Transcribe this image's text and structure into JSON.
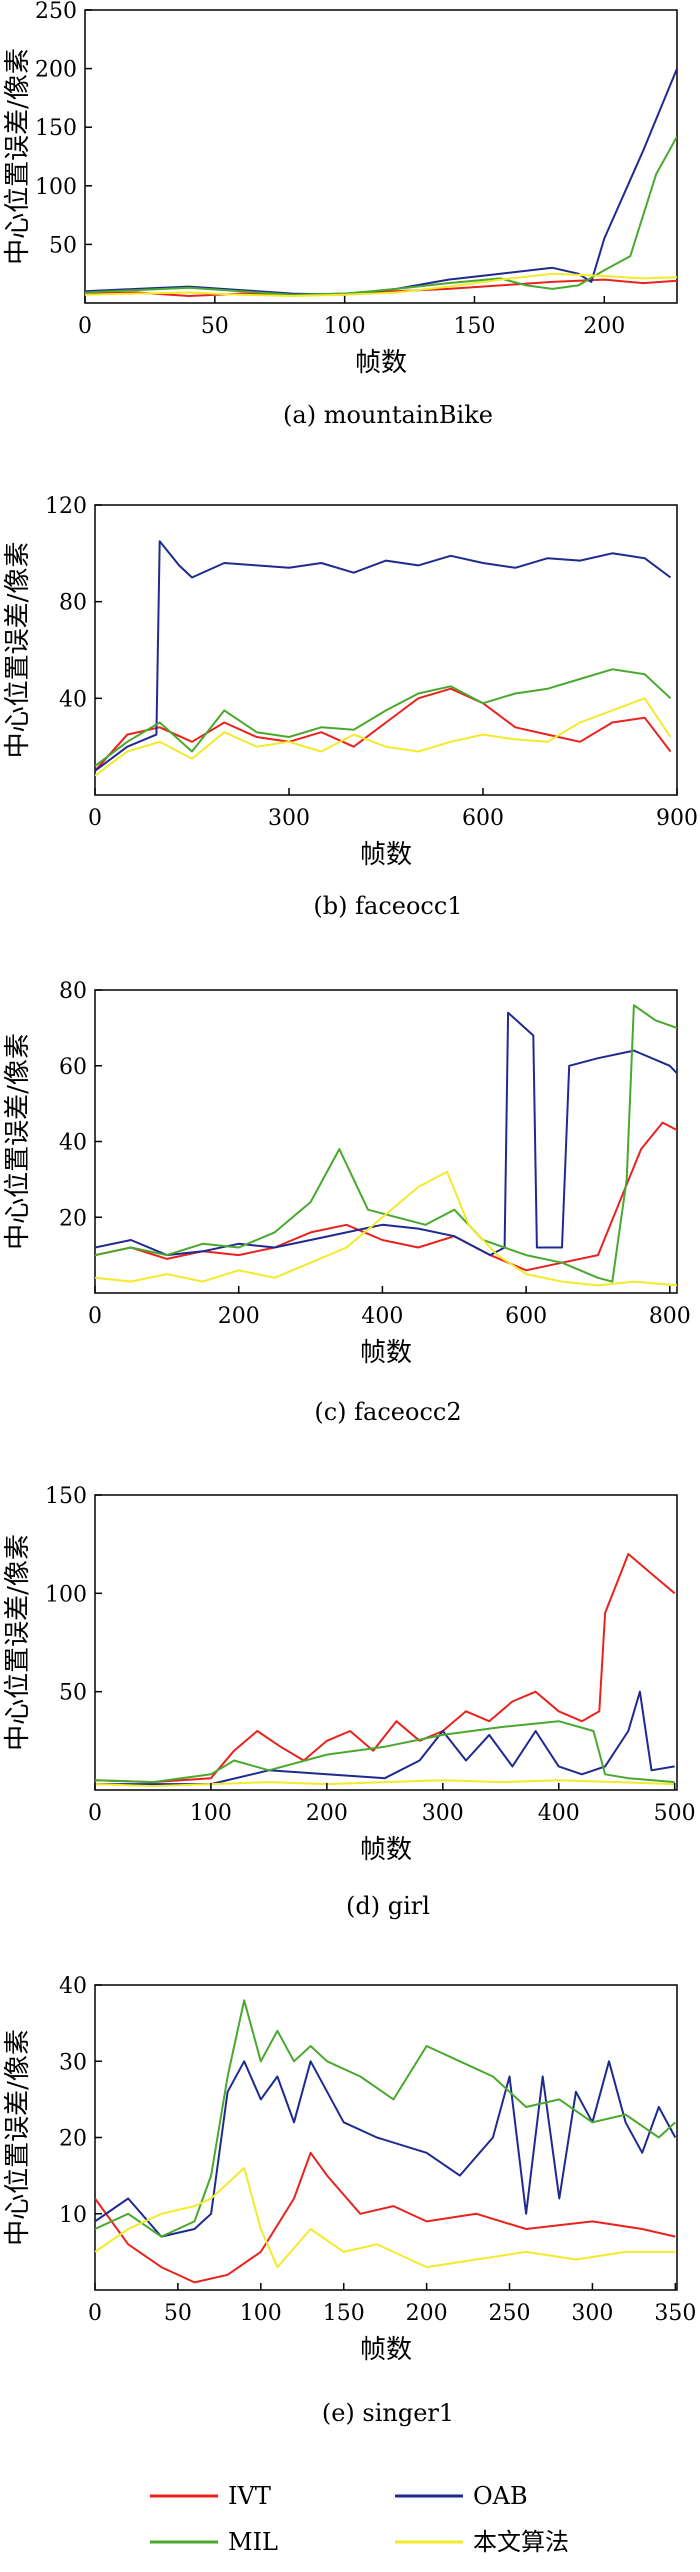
{
  "colors": {
    "IVT": "#e8231e",
    "OAB": "#1f2a8e",
    "MIL": "#49a82d",
    "ours": "#f2ea2a"
  },
  "legend": [
    {
      "key": "IVT",
      "label": "IVT"
    },
    {
      "key": "OAB",
      "label": "OAB"
    },
    {
      "key": "MIL",
      "label": "MIL"
    },
    {
      "key": "ours",
      "label": "本文算法"
    }
  ],
  "chart_data": [
    {
      "type": "line",
      "caption": "(a) mountainBike",
      "xlabel": "帧数",
      "ylabel": "中心位置误差/像素",
      "xlim": [
        0,
        228
      ],
      "ylim": [
        0,
        250
      ],
      "xticks": [
        0,
        50,
        100,
        150,
        200
      ],
      "yticks": [
        50,
        100,
        150,
        200,
        250
      ],
      "series": [
        {
          "name": "IVT",
          "x": [
            0,
            20,
            40,
            60,
            80,
            100,
            120,
            140,
            160,
            180,
            200,
            215,
            228
          ],
          "values": [
            8,
            9,
            6,
            8,
            7,
            8,
            10,
            12,
            15,
            18,
            20,
            17,
            19
          ]
        },
        {
          "name": "OAB",
          "x": [
            0,
            20,
            40,
            60,
            80,
            100,
            120,
            140,
            160,
            180,
            190,
            195,
            200,
            215,
            228
          ],
          "values": [
            10,
            12,
            14,
            11,
            8,
            7,
            12,
            20,
            25,
            30,
            25,
            18,
            55,
            130,
            200
          ]
        },
        {
          "name": "MIL",
          "x": [
            0,
            20,
            40,
            60,
            80,
            100,
            120,
            140,
            160,
            170,
            180,
            190,
            200,
            210,
            220,
            228
          ],
          "values": [
            9,
            11,
            13,
            10,
            7,
            8,
            12,
            17,
            21,
            15,
            12,
            15,
            28,
            40,
            110,
            142
          ]
        },
        {
          "name": "本文算法",
          "x": [
            0,
            20,
            40,
            60,
            80,
            100,
            120,
            140,
            160,
            180,
            200,
            215,
            228
          ],
          "values": [
            7,
            8,
            9,
            7,
            6,
            7,
            9,
            14,
            20,
            25,
            23,
            21,
            22
          ]
        }
      ]
    },
    {
      "type": "line",
      "caption": "(b) faceocc1",
      "xlabel": "帧数",
      "ylabel": "中心位置误差/像素",
      "xlim": [
        0,
        900
      ],
      "ylim": [
        0,
        120
      ],
      "xticks": [
        0,
        300,
        600,
        900
      ],
      "yticks": [
        40,
        80,
        120
      ],
      "series": [
        {
          "name": "IVT",
          "x": [
            0,
            50,
            100,
            150,
            200,
            250,
            300,
            350,
            400,
            450,
            500,
            550,
            600,
            650,
            700,
            750,
            800,
            850,
            890
          ],
          "values": [
            10,
            25,
            28,
            22,
            30,
            24,
            22,
            26,
            20,
            30,
            40,
            44,
            38,
            28,
            25,
            22,
            30,
            32,
            18
          ]
        },
        {
          "name": "OAB",
          "x": [
            0,
            50,
            95,
            100,
            130,
            150,
            200,
            250,
            300,
            350,
            400,
            450,
            500,
            550,
            600,
            650,
            700,
            750,
            800,
            850,
            890
          ],
          "values": [
            10,
            20,
            25,
            105,
            95,
            90,
            96,
            95,
            94,
            96,
            92,
            97,
            95,
            99,
            96,
            94,
            98,
            97,
            100,
            98,
            90
          ]
        },
        {
          "name": "MIL",
          "x": [
            0,
            50,
            100,
            150,
            200,
            250,
            300,
            350,
            400,
            450,
            500,
            550,
            600,
            650,
            700,
            750,
            800,
            850,
            890
          ],
          "values": [
            12,
            22,
            30,
            18,
            35,
            26,
            24,
            28,
            27,
            35,
            42,
            45,
            38,
            42,
            44,
            48,
            52,
            50,
            40
          ]
        },
        {
          "name": "本文算法",
          "x": [
            0,
            50,
            100,
            150,
            200,
            250,
            300,
            350,
            400,
            450,
            500,
            550,
            600,
            650,
            700,
            750,
            800,
            850,
            890
          ],
          "values": [
            8,
            18,
            22,
            15,
            26,
            20,
            22,
            18,
            25,
            20,
            18,
            22,
            25,
            23,
            22,
            30,
            35,
            40,
            24
          ]
        }
      ]
    },
    {
      "type": "line",
      "caption": "(c) faceocc2",
      "xlabel": "帧数",
      "ylabel": "中心位置误差/像素",
      "xlim": [
        0,
        810
      ],
      "ylim": [
        0,
        80
      ],
      "xticks": [
        0,
        200,
        400,
        600,
        800
      ],
      "yticks": [
        20,
        40,
        60,
        80
      ],
      "series": [
        {
          "name": "IVT",
          "x": [
            0,
            50,
            100,
            150,
            200,
            250,
            300,
            350,
            400,
            450,
            500,
            550,
            600,
            650,
            700,
            730,
            760,
            790,
            810
          ],
          "values": [
            10,
            12,
            9,
            11,
            10,
            12,
            16,
            18,
            14,
            12,
            15,
            10,
            6,
            8,
            10,
            24,
            38,
            45,
            43
          ]
        },
        {
          "name": "OAB",
          "x": [
            0,
            50,
            100,
            150,
            200,
            250,
            300,
            350,
            400,
            450,
            500,
            550,
            570,
            575,
            610,
            615,
            650,
            660,
            700,
            750,
            800,
            810
          ],
          "values": [
            12,
            14,
            10,
            11,
            13,
            12,
            14,
            16,
            18,
            17,
            15,
            10,
            12,
            74,
            68,
            12,
            12,
            60,
            62,
            64,
            60,
            58
          ]
        },
        {
          "name": "MIL",
          "x": [
            0,
            50,
            100,
            150,
            200,
            250,
            300,
            340,
            380,
            420,
            460,
            500,
            540,
            600,
            650,
            700,
            720,
            740,
            750,
            780,
            810
          ],
          "values": [
            10,
            12,
            10,
            13,
            12,
            16,
            24,
            38,
            22,
            20,
            18,
            22,
            14,
            10,
            8,
            4,
            3,
            30,
            76,
            72,
            70
          ]
        },
        {
          "name": "本文算法",
          "x": [
            0,
            50,
            100,
            150,
            200,
            250,
            300,
            350,
            400,
            450,
            490,
            520,
            560,
            600,
            650,
            700,
            750,
            810
          ],
          "values": [
            4,
            3,
            5,
            3,
            6,
            4,
            8,
            12,
            20,
            28,
            32,
            18,
            10,
            5,
            3,
            2,
            3,
            2
          ]
        }
      ]
    },
    {
      "type": "line",
      "caption": "(d) girl",
      "xlabel": "帧数",
      "ylabel": "中心位置误差/像素",
      "xlim": [
        0,
        502
      ],
      "ylim": [
        0,
        150
      ],
      "xticks": [
        0,
        100,
        200,
        300,
        400,
        500
      ],
      "yticks": [
        50,
        100,
        150
      ],
      "series": [
        {
          "name": "IVT",
          "x": [
            0,
            50,
            100,
            120,
            140,
            160,
            180,
            200,
            220,
            240,
            260,
            280,
            300,
            320,
            340,
            360,
            380,
            400,
            420,
            435,
            440,
            460,
            480,
            500
          ],
          "values": [
            5,
            4,
            6,
            20,
            30,
            22,
            15,
            25,
            30,
            20,
            35,
            25,
            30,
            40,
            35,
            45,
            50,
            40,
            35,
            40,
            90,
            120,
            110,
            100
          ]
        },
        {
          "name": "OAB",
          "x": [
            0,
            50,
            100,
            150,
            200,
            250,
            280,
            300,
            320,
            340,
            360,
            380,
            400,
            420,
            440,
            460,
            470,
            480,
            500
          ],
          "values": [
            3,
            3,
            3,
            10,
            8,
            6,
            15,
            30,
            15,
            28,
            12,
            30,
            12,
            8,
            12,
            30,
            50,
            10,
            12
          ]
        },
        {
          "name": "MIL",
          "x": [
            0,
            50,
            100,
            120,
            150,
            200,
            250,
            300,
            350,
            400,
            430,
            440,
            460,
            500
          ],
          "values": [
            5,
            4,
            8,
            15,
            10,
            18,
            22,
            28,
            32,
            35,
            30,
            8,
            6,
            4
          ]
        },
        {
          "name": "本文算法",
          "x": [
            0,
            50,
            100,
            150,
            200,
            250,
            300,
            350,
            400,
            450,
            500
          ],
          "values": [
            3,
            2,
            3,
            4,
            3,
            4,
            5,
            4,
            5,
            4,
            3
          ]
        }
      ]
    },
    {
      "type": "line",
      "caption": "(e) singer1",
      "xlabel": "帧数",
      "ylabel": "中心位置误差/像素",
      "xlim": [
        0,
        351
      ],
      "ylim": [
        0,
        40
      ],
      "xticks": [
        0,
        50,
        100,
        150,
        200,
        250,
        300,
        350
      ],
      "yticks": [
        10,
        20,
        30,
        40
      ],
      "series": [
        {
          "name": "IVT",
          "x": [
            0,
            20,
            40,
            60,
            80,
            100,
            120,
            130,
            140,
            160,
            180,
            200,
            230,
            260,
            300,
            330,
            350
          ],
          "values": [
            12,
            6,
            3,
            1,
            2,
            5,
            12,
            18,
            15,
            10,
            11,
            9,
            10,
            8,
            9,
            8,
            7
          ]
        },
        {
          "name": "OAB",
          "x": [
            0,
            20,
            40,
            60,
            70,
            80,
            90,
            100,
            110,
            120,
            130,
            150,
            170,
            200,
            220,
            240,
            250,
            260,
            270,
            280,
            290,
            300,
            310,
            320,
            330,
            340,
            350
          ],
          "values": [
            9,
            12,
            7,
            8,
            10,
            26,
            30,
            25,
            28,
            22,
            30,
            22,
            20,
            18,
            15,
            20,
            28,
            10,
            28,
            12,
            26,
            22,
            30,
            22,
            18,
            24,
            20
          ]
        },
        {
          "name": "MIL",
          "x": [
            0,
            20,
            40,
            60,
            70,
            80,
            90,
            100,
            110,
            120,
            130,
            140,
            160,
            180,
            200,
            220,
            240,
            260,
            280,
            300,
            320,
            340,
            350
          ],
          "values": [
            8,
            10,
            7,
            9,
            15,
            28,
            38,
            30,
            34,
            30,
            32,
            30,
            28,
            25,
            32,
            30,
            28,
            24,
            25,
            22,
            23,
            20,
            22
          ]
        },
        {
          "name": "本文算法",
          "x": [
            0,
            20,
            40,
            60,
            70,
            80,
            90,
            100,
            110,
            130,
            150,
            170,
            200,
            230,
            260,
            290,
            320,
            350
          ],
          "values": [
            5,
            8,
            10,
            11,
            12,
            14,
            16,
            8,
            3,
            8,
            5,
            6,
            3,
            4,
            5,
            4,
            5,
            5
          ]
        }
      ]
    }
  ]
}
